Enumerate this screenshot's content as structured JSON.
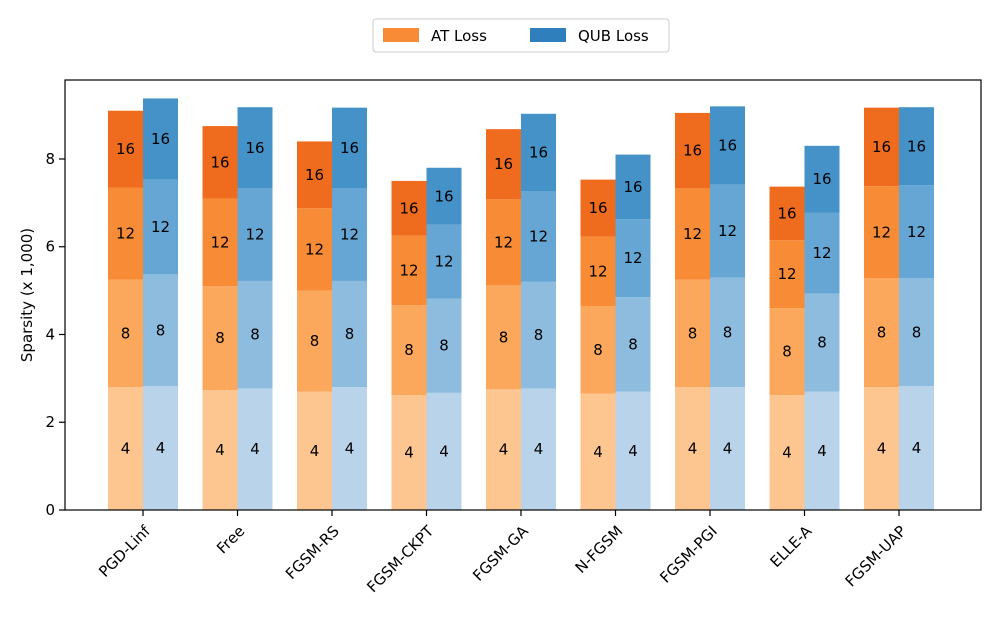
{
  "chart_data": {
    "type": "bar",
    "stacked": true,
    "ylabel": "Sparsity (x 1,000)",
    "xlabel": "",
    "ylim": [
      0,
      9.8
    ],
    "yticks": [
      0,
      2,
      4,
      6,
      8
    ],
    "categories": [
      "PGD-Linf",
      "Free",
      "FGSM-RS",
      "FGSM-CKPT",
      "FGSM-GA",
      "N-FGSM",
      "FGSM-PGI",
      "ELLE-A",
      "FGSM-UAP"
    ],
    "legend": {
      "placement": "top-center",
      "entries": [
        "AT Loss",
        "QUB Loss"
      ]
    },
    "stack_labels": [
      "4",
      "8",
      "12",
      "16"
    ],
    "series": [
      {
        "name": "AT Loss",
        "colors": [
          "#fdc590",
          "#fba75c",
          "#f88b36",
          "#ef6c1e"
        ],
        "cumulative": [
          [
            2.8,
            5.25,
            7.35,
            9.1
          ],
          [
            2.73,
            5.1,
            7.1,
            8.75
          ],
          [
            2.7,
            5.0,
            6.88,
            8.4
          ],
          [
            2.62,
            4.67,
            6.25,
            7.5
          ],
          [
            2.75,
            5.12,
            7.08,
            8.68
          ],
          [
            2.65,
            4.65,
            6.23,
            7.53
          ],
          [
            2.8,
            5.25,
            7.33,
            9.05
          ],
          [
            2.62,
            4.6,
            6.15,
            7.37
          ],
          [
            2.8,
            5.28,
            7.38,
            9.17
          ]
        ]
      },
      {
        "name": "QUB Loss",
        "colors": [
          "#b9d4ea",
          "#8dbcdf",
          "#65a6d4",
          "#4592c8"
        ],
        "cumulative": [
          [
            2.82,
            5.37,
            7.53,
            9.38
          ],
          [
            2.77,
            5.22,
            7.33,
            9.18
          ],
          [
            2.8,
            5.22,
            7.33,
            9.17
          ],
          [
            2.67,
            4.82,
            6.5,
            7.8
          ],
          [
            2.77,
            5.2,
            7.27,
            9.03
          ],
          [
            2.7,
            4.85,
            6.63,
            8.1
          ],
          [
            2.8,
            5.3,
            7.42,
            9.2
          ],
          [
            2.7,
            4.93,
            6.78,
            8.3
          ],
          [
            2.82,
            5.28,
            7.4,
            9.18
          ]
        ]
      }
    ]
  }
}
